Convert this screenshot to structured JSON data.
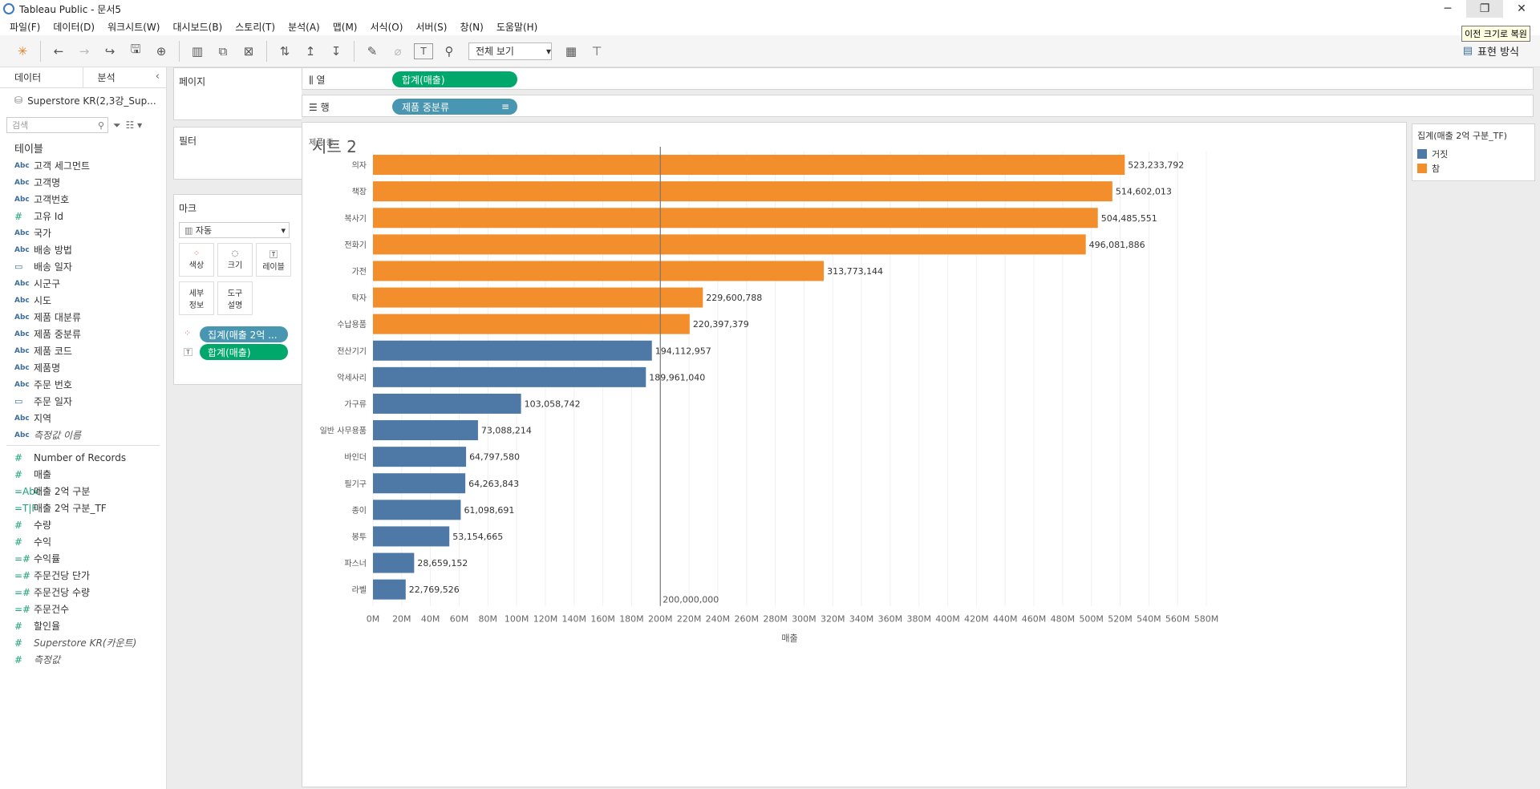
{
  "window": {
    "title": "Tableau Public - 문서5",
    "tooltip": "이전 크기로 복원"
  },
  "menu": [
    "파일(F)",
    "데이터(D)",
    "워크시트(W)",
    "대시보드(B)",
    "스토리(T)",
    "분석(A)",
    "맵(M)",
    "서식(O)",
    "서버(S)",
    "창(N)",
    "도움말(H)"
  ],
  "toolbar": {
    "fit": "전체 보기",
    "show_me": "표현 방식"
  },
  "left": {
    "tab_data": "데이터",
    "tab_analysis": "분석",
    "datasource": "Superstore KR(2,3강_Sup...",
    "search_placeholder": "검색",
    "tables_title": "테이블",
    "dimensions": [
      {
        "icon": "Abc",
        "label": "고객 세그먼트"
      },
      {
        "icon": "Abc",
        "label": "고객명"
      },
      {
        "icon": "Abc",
        "label": "고객번호"
      },
      {
        "icon": "#",
        "label": "고유 Id"
      },
      {
        "icon": "Abc",
        "label": "국가"
      },
      {
        "icon": "Abc",
        "label": "배송 방법"
      },
      {
        "icon": "cal",
        "label": "배송 일자"
      },
      {
        "icon": "Abc",
        "label": "시군구"
      },
      {
        "icon": "Abc",
        "label": "시도"
      },
      {
        "icon": "Abc",
        "label": "제품 대분류"
      },
      {
        "icon": "Abc",
        "label": "제품 중분류"
      },
      {
        "icon": "Abc",
        "label": "제품 코드"
      },
      {
        "icon": "Abc",
        "label": "제품명"
      },
      {
        "icon": "Abc",
        "label": "주문 번호"
      },
      {
        "icon": "cal",
        "label": "주문 일자"
      },
      {
        "icon": "Abc",
        "label": "지역"
      },
      {
        "icon": "Abc",
        "label": "측정값 이름"
      }
    ],
    "measures": [
      {
        "icon": "#",
        "label": "Number of Records"
      },
      {
        "icon": "#",
        "label": "매출"
      },
      {
        "icon": "=Abc",
        "label": "매출 2억 구분"
      },
      {
        "icon": "=T|F",
        "label": "매출 2억 구분_TF"
      },
      {
        "icon": "#",
        "label": "수량"
      },
      {
        "icon": "#",
        "label": "수익"
      },
      {
        "icon": "=#",
        "label": "수익률"
      },
      {
        "icon": "=#",
        "label": "주문건당 단가"
      },
      {
        "icon": "=#",
        "label": "주문건당 수량"
      },
      {
        "icon": "=#",
        "label": "주문건수"
      },
      {
        "icon": "#",
        "label": "할인율"
      },
      {
        "icon": "#",
        "label": "Superstore KR(카운트)"
      },
      {
        "icon": "#",
        "label": "측정값"
      }
    ]
  },
  "cards": {
    "pages": "페이지",
    "filters": "필터",
    "marks": "마크",
    "mark_type": "자동",
    "btn_color": "색상",
    "btn_size": "크기",
    "btn_label": "레이블",
    "btn_detail_1": "세부",
    "btn_detail_2": "정보",
    "btn_tooltip_1": "도구",
    "btn_tooltip_2": "설명",
    "pill_color": "집계(매출 2억 ...",
    "pill_label": "합계(매출)"
  },
  "shelves": {
    "columns_label": "열",
    "columns_pill": "합계(매출)",
    "rows_label": "행",
    "rows_pill": "제품 중분류"
  },
  "sheet": {
    "title": "시트 2",
    "row_header": "제품 중..",
    "x_title": "매출",
    "refline_label": "200,000,000"
  },
  "legend": {
    "title": "집계(매출 2억 구분_TF)",
    "items": [
      {
        "label": "거짓",
        "color": "#4e79a7"
      },
      {
        "label": "참",
        "color": "#f28e2b"
      }
    ]
  },
  "chart_data": {
    "type": "bar",
    "orientation": "horizontal",
    "categories": [
      "의자",
      "책장",
      "복사기",
      "전화기",
      "가전",
      "탁자",
      "수납용품",
      "전산기기",
      "악세사리",
      "가구류",
      "일반 사무용품",
      "바인더",
      "필기구",
      "종이",
      "봉투",
      "파스너",
      "라벨"
    ],
    "values": [
      523233792,
      514602013,
      504485551,
      496081886,
      313773144,
      229600788,
      220397379,
      194112957,
      189961040,
      103058742,
      73088214,
      64797580,
      64263843,
      61098691,
      53154665,
      28659152,
      22769526
    ],
    "labels": [
      "523,233,792",
      "514,602,013",
      "504,485,551",
      "496,081,886",
      "313,773,144",
      "229,600,788",
      "220,397,379",
      "194,112,957",
      "189,961,040",
      "103,058,742",
      "73,088,214",
      "64,797,580",
      "64,263,843",
      "61,098,691",
      "53,154,665",
      "28,659,152",
      "22,769,526"
    ],
    "group": [
      "참",
      "참",
      "참",
      "참",
      "참",
      "참",
      "참",
      "거짓",
      "거짓",
      "거짓",
      "거짓",
      "거짓",
      "거짓",
      "거짓",
      "거짓",
      "거짓",
      "거짓"
    ],
    "colors": {
      "참": "#f28e2b",
      "거짓": "#4e79a7"
    },
    "xlim": [
      0,
      580000000
    ],
    "xticks": [
      "0M",
      "20M",
      "40M",
      "60M",
      "80M",
      "100M",
      "120M",
      "140M",
      "160M",
      "180M",
      "200M",
      "220M",
      "240M",
      "260M",
      "280M",
      "300M",
      "320M",
      "340M",
      "360M",
      "380M",
      "400M",
      "420M",
      "440M",
      "460M",
      "480M",
      "500M",
      "520M",
      "540M",
      "560M",
      "580M"
    ],
    "reference_line": 200000000,
    "xlabel": "매출",
    "ylabel": "제품 중..",
    "grid": true
  }
}
